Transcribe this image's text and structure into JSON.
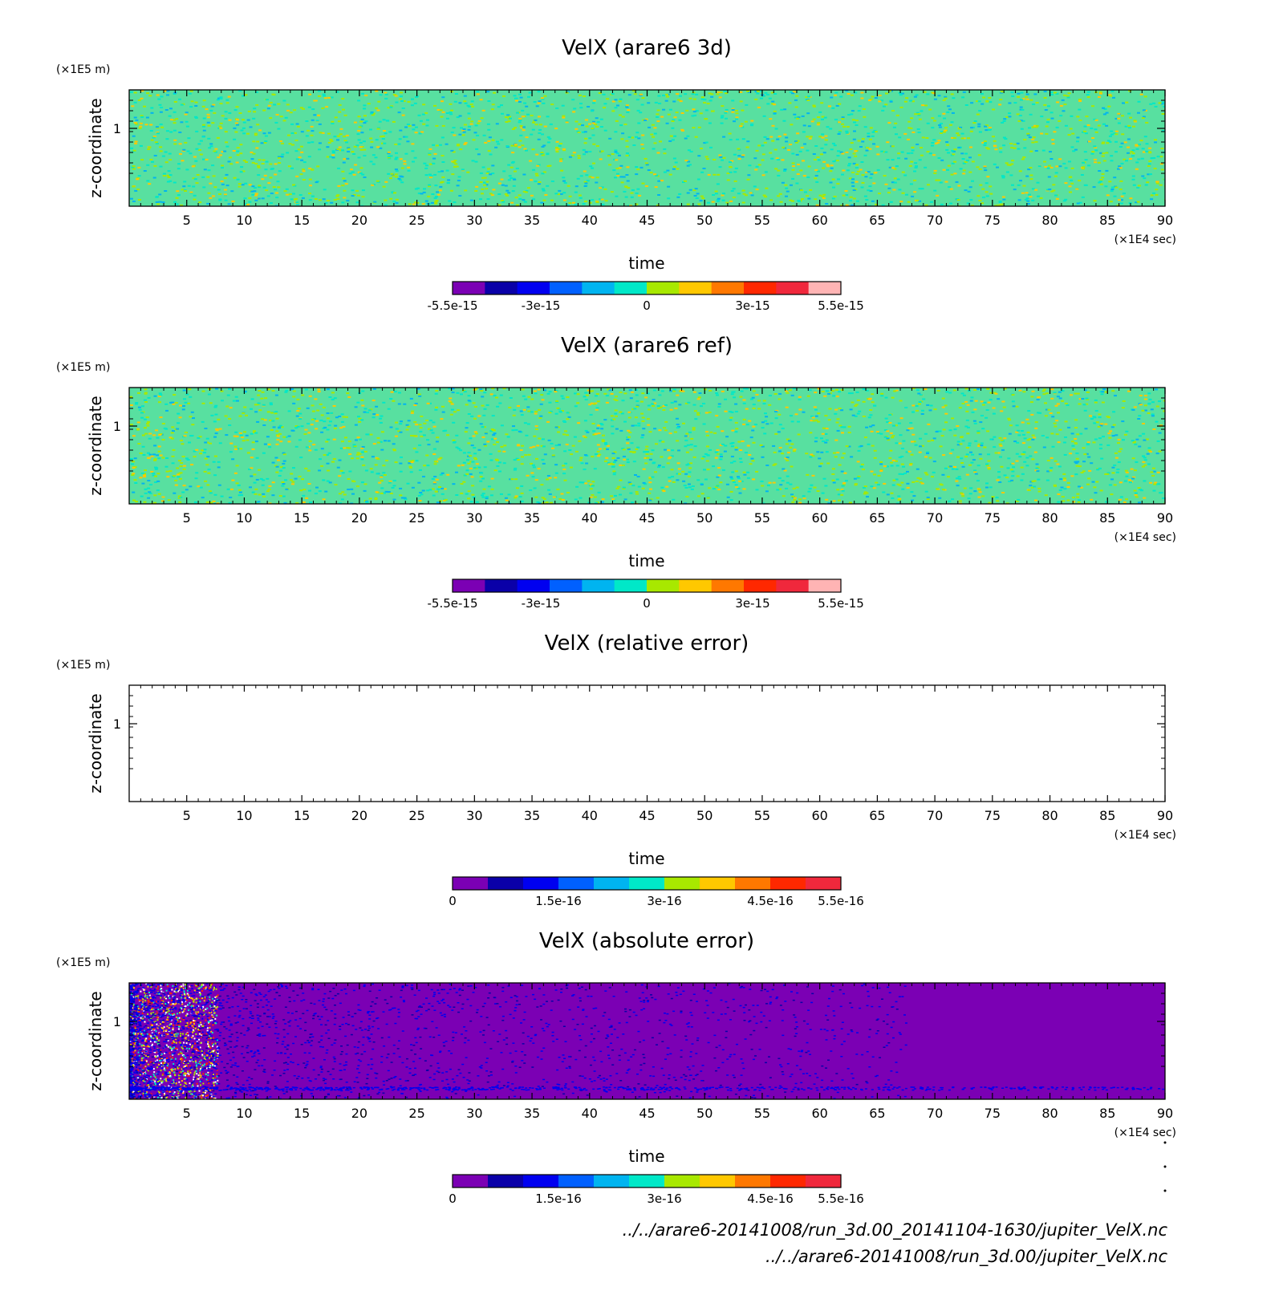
{
  "chart_data": [
    {
      "type": "heatmap",
      "title": "VelX (arare6 3d)",
      "xlabel": "time",
      "ylabel": "z-coordinate",
      "x_unit": "(×1E4 sec)",
      "y_unit": "(×1E5 m)",
      "xlim": [
        0,
        90
      ],
      "x_ticks": [
        "5",
        "10",
        "15",
        "20",
        "25",
        "30",
        "35",
        "40",
        "45",
        "50",
        "55",
        "60",
        "65",
        "70",
        "75",
        "80",
        "85",
        "90"
      ],
      "y_ticks": [
        "1"
      ],
      "field": "noise",
      "colorbar": {
        "colors": [
          "#7b00b4",
          "#0a00a8",
          "#0000f0",
          "#0060ff",
          "#00b4f0",
          "#00e8c8",
          "#a8e800",
          "#ffc800",
          "#ff7800",
          "#ff2800",
          "#f0283c",
          "#ffb4b4"
        ],
        "labels": [
          "-5.5e-15",
          "-3e-15",
          "0",
          "3e-15",
          "5.5e-15"
        ],
        "label_values": [
          -5.5,
          -3,
          0,
          3,
          5.5
        ],
        "range": [
          -5.5,
          5.5
        ]
      }
    },
    {
      "type": "heatmap",
      "title": "VelX (arare6 ref)",
      "xlabel": "time",
      "ylabel": "z-coordinate",
      "x_unit": "(×1E4 sec)",
      "y_unit": "(×1E5 m)",
      "xlim": [
        0,
        90
      ],
      "x_ticks": [
        "5",
        "10",
        "15",
        "20",
        "25",
        "30",
        "35",
        "40",
        "45",
        "50",
        "55",
        "60",
        "65",
        "70",
        "75",
        "80",
        "85",
        "90"
      ],
      "y_ticks": [
        "1"
      ],
      "field": "noise",
      "colorbar": {
        "colors": [
          "#7b00b4",
          "#0a00a8",
          "#0000f0",
          "#0060ff",
          "#00b4f0",
          "#00e8c8",
          "#a8e800",
          "#ffc800",
          "#ff7800",
          "#ff2800",
          "#f0283c",
          "#ffb4b4"
        ],
        "labels": [
          "-5.5e-15",
          "-3e-15",
          "0",
          "3e-15",
          "5.5e-15"
        ],
        "label_values": [
          -5.5,
          -3,
          0,
          3,
          5.5
        ],
        "range": [
          -5.5,
          5.5
        ]
      }
    },
    {
      "type": "heatmap",
      "title": "VelX (relative error)",
      "xlabel": "time",
      "ylabel": "z-coordinate",
      "x_unit": "(×1E4 sec)",
      "y_unit": "(×1E5 m)",
      "xlim": [
        0,
        90
      ],
      "x_ticks": [
        "5",
        "10",
        "15",
        "20",
        "25",
        "30",
        "35",
        "40",
        "45",
        "50",
        "55",
        "60",
        "65",
        "70",
        "75",
        "80",
        "85",
        "90"
      ],
      "y_ticks": [
        "1"
      ],
      "field": "empty",
      "colorbar": {
        "colors": [
          "#7b00b4",
          "#0a00a8",
          "#0000f0",
          "#0060ff",
          "#00b4f0",
          "#00e8c8",
          "#a8e800",
          "#ffc800",
          "#ff7800",
          "#ff2800",
          "#f0283c"
        ],
        "labels": [
          "0",
          "1.5e-16",
          "3e-16",
          "4.5e-16",
          "5.5e-16"
        ],
        "label_values": [
          0,
          1.5,
          3,
          4.5,
          5.5
        ],
        "range": [
          0,
          5.5
        ]
      }
    },
    {
      "type": "heatmap",
      "title": "VelX (absolute error)",
      "xlabel": "time",
      "ylabel": "z-coordinate",
      "x_unit": "(×1E4 sec)",
      "y_unit": "(×1E5 m)",
      "xlim": [
        0,
        90
      ],
      "x_ticks": [
        "5",
        "10",
        "15",
        "20",
        "25",
        "30",
        "35",
        "40",
        "45",
        "50",
        "55",
        "60",
        "65",
        "70",
        "75",
        "80",
        "85",
        "90"
      ],
      "y_ticks": [
        "1"
      ],
      "field": "decay",
      "colorbar": {
        "colors": [
          "#7b00b4",
          "#0a00a8",
          "#0000f0",
          "#0060ff",
          "#00b4f0",
          "#00e8c8",
          "#a8e800",
          "#ffc800",
          "#ff7800",
          "#ff2800",
          "#f0283c"
        ],
        "labels": [
          "0",
          "1.5e-16",
          "3e-16",
          "4.5e-16",
          "5.5e-16"
        ],
        "label_values": [
          0,
          1.5,
          3,
          4.5,
          5.5
        ],
        "range": [
          0,
          5.5
        ]
      }
    }
  ],
  "footer": {
    "line1": "../../arare6-20141008/run_3d.00_20141104-1630/jupiter_VelX.nc",
    "line2": "../../arare6-20141008/run_3d.00/jupiter_VelX.nc"
  }
}
